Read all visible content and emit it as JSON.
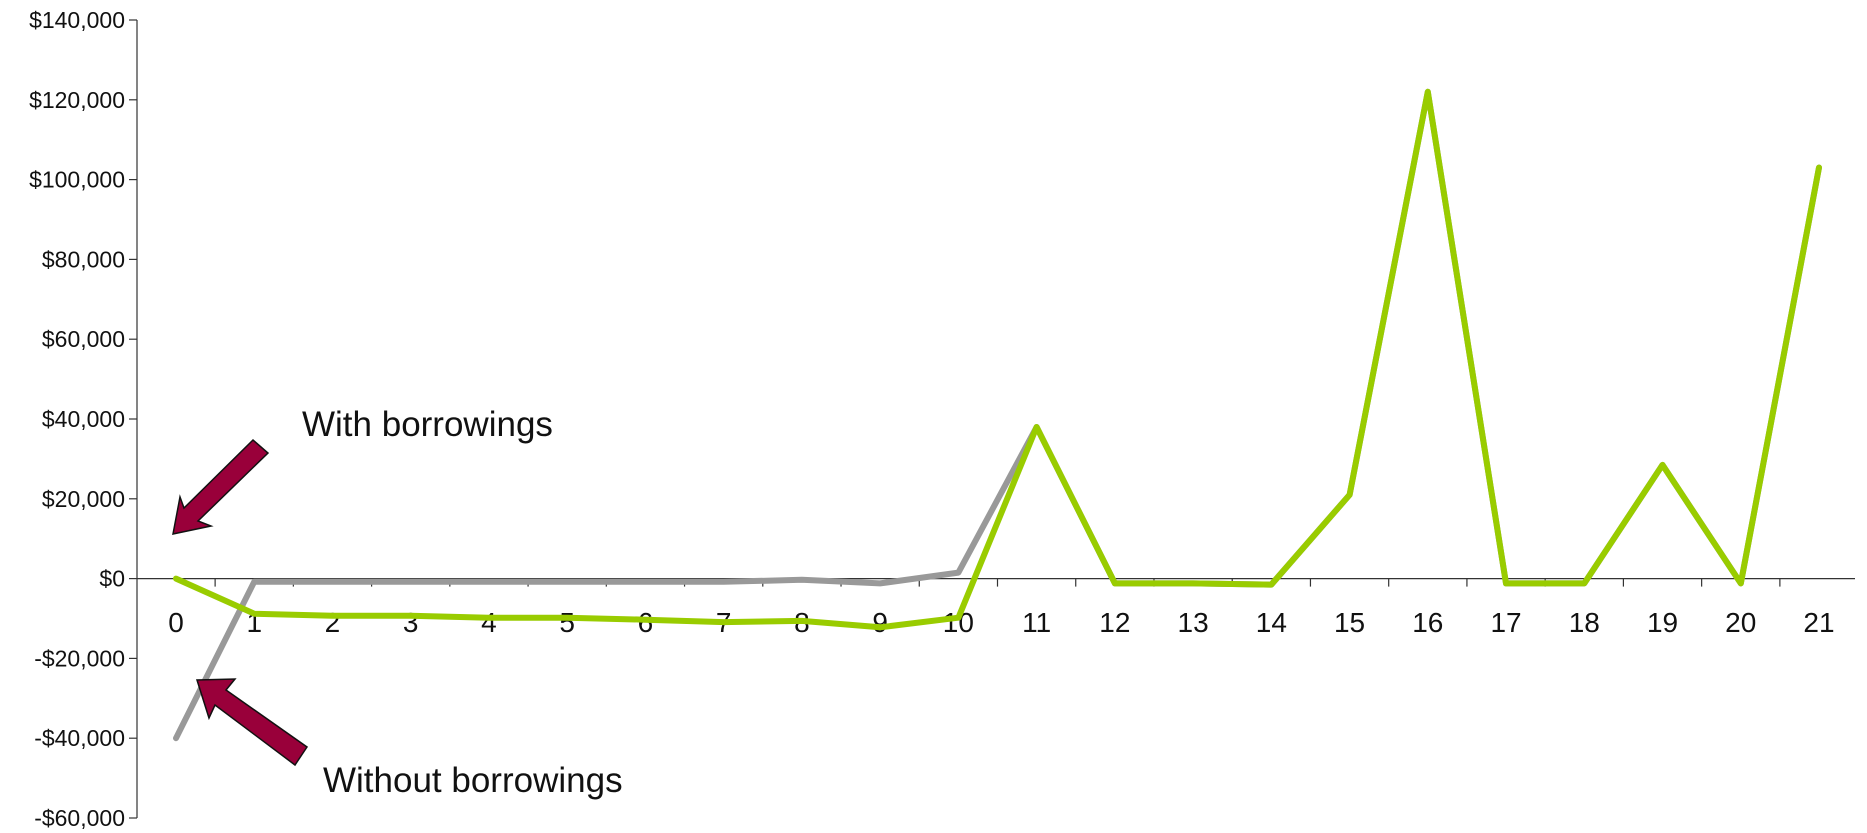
{
  "chart_data": {
    "type": "line",
    "title": "",
    "xlabel": "",
    "ylabel": "",
    "x": [
      0,
      1,
      2,
      3,
      4,
      5,
      6,
      7,
      8,
      9,
      10,
      11,
      12,
      13,
      14,
      15,
      16,
      17,
      18,
      19,
      20,
      21
    ],
    "x_tick_labels": [
      "0",
      "1",
      "2",
      "3",
      "4",
      "5",
      "6",
      "7",
      "8",
      "9",
      "10",
      "11",
      "12",
      "13",
      "14",
      "15",
      "16",
      "17",
      "18",
      "19",
      "20",
      "21"
    ],
    "y_tick_values": [
      140000,
      120000,
      100000,
      80000,
      60000,
      40000,
      20000,
      0,
      -20000,
      -40000,
      -60000
    ],
    "y_tick_labels": [
      "$140,000",
      "$120,000",
      "$100,000",
      "$80,000",
      "$60,000",
      "$40,000",
      "$20,000",
      "$0",
      "-$20,000",
      "-$40,000",
      "-$60,000"
    ],
    "ylim": [
      -60000,
      140000
    ],
    "grid": false,
    "legend": "none",
    "series": [
      {
        "color": "#999999",
        "values": [
          -40000,
          -800,
          -800,
          -800,
          -800,
          -800,
          -800,
          -800,
          -300,
          -1200,
          1500,
          38000,
          -1200,
          -1200,
          -1500,
          21000,
          122000,
          -1200,
          -1200,
          28500,
          -1200,
          103000
        ]
      },
      {
        "color": "#99cc00",
        "values": [
          0,
          -8800,
          -9300,
          -9300,
          -9800,
          -9800,
          -10300,
          -10900,
          -10600,
          -12200,
          -9800,
          38000,
          -1200,
          -1200,
          -1500,
          21000,
          122000,
          -1200,
          -1200,
          28500,
          -1200,
          103000
        ]
      }
    ],
    "annotations": [
      {
        "text": "With borrowings",
        "arrow_color": "#99003a"
      },
      {
        "text": "Without borrowings",
        "arrow_color": "#99003a"
      }
    ]
  }
}
